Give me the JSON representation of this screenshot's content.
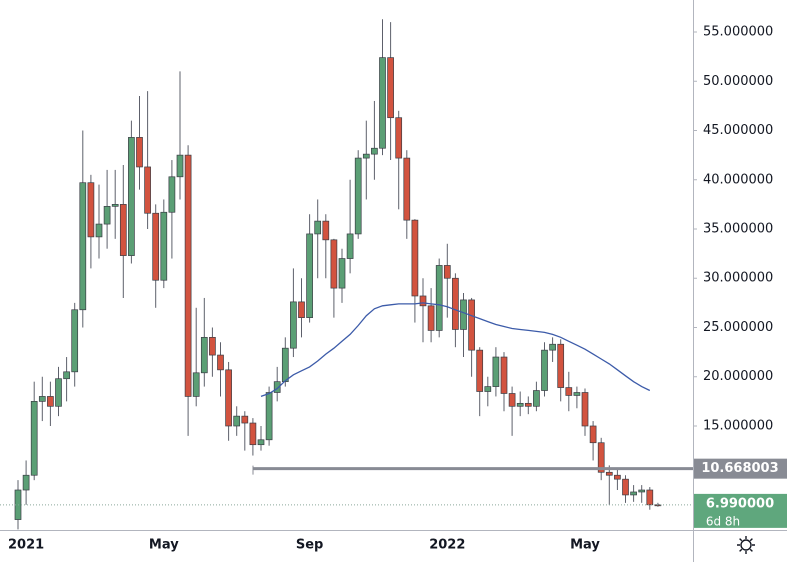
{
  "chart_data": {
    "type": "candlestick",
    "categories": [
      null,
      "2021",
      null,
      null,
      null,
      null,
      null,
      null,
      null,
      null,
      null,
      null,
      null,
      null,
      null,
      null,
      null,
      null,
      "May",
      null,
      null,
      null,
      null,
      null,
      null,
      null,
      null,
      null,
      null,
      null,
      null,
      null,
      null,
      null,
      null,
      null,
      "Sep",
      null,
      null,
      null,
      null,
      null,
      null,
      null,
      null,
      null,
      null,
      null,
      null,
      null,
      null,
      null,
      null,
      "2022",
      null,
      null,
      null,
      null,
      null,
      null,
      null,
      null,
      null,
      null,
      null,
      null,
      null,
      null,
      null,
      null,
      "May",
      null,
      null,
      null,
      null,
      null,
      null,
      null,
      null,
      null
    ],
    "open": [
      5.5,
      8.5,
      10,
      17.5,
      18,
      17,
      19.8,
      20.5,
      26.8,
      39.7,
      34.2,
      35.5,
      37.3,
      37.5,
      32.3,
      44.3,
      41.3,
      36.6,
      29.8,
      36.7,
      40.3,
      42.5,
      18,
      20.4,
      24,
      22.2,
      20.7,
      15,
      16,
      15.3,
      13.1,
      13.6,
      18.4,
      19.5,
      22.9,
      27.6,
      26,
      34.5,
      35.8,
      33.9,
      29,
      32,
      34.5,
      42.2,
      42.6,
      43.2,
      52.4,
      46.3,
      42.2,
      35.9,
      28.2,
      27.2,
      24.7,
      31.3,
      30,
      24.8,
      27.8,
      22.7,
      18.5,
      19,
      22,
      18.3,
      17,
      17.3,
      17,
      18.6,
      22.7,
      23.3,
      18.9,
      18.1,
      18.4,
      15,
      13.3,
      10.3,
      10,
      9.6,
      8,
      8.3,
      8.5,
      7
    ],
    "high": [
      9.5,
      11.5,
      19.5,
      20,
      19.5,
      21,
      22,
      27.5,
      45,
      40.5,
      39.5,
      41,
      41,
      41.5,
      46,
      48.5,
      49,
      37.5,
      38,
      42,
      51,
      43.5,
      27,
      28,
      25,
      23.5,
      21.5,
      17,
      16.5,
      15.8,
      15,
      19,
      21,
      24,
      31,
      30,
      36.5,
      38,
      36.5,
      34,
      33,
      40,
      43,
      46,
      48,
      56.3,
      56,
      47,
      43,
      36,
      30,
      29,
      32,
      33.5,
      30.5,
      28.5,
      28,
      23,
      20,
      23,
      22.5,
      19,
      18.5,
      18,
      19.5,
      23.5,
      24,
      23.8,
      20.5,
      19,
      18.8,
      15.5,
      13.8,
      11,
      10.7,
      10,
      9,
      9,
      8.8,
      7.2
    ],
    "low": [
      4.5,
      7,
      9.5,
      15.5,
      15,
      16,
      17.5,
      19,
      25,
      31,
      32,
      33,
      34,
      28,
      31.5,
      39,
      35,
      27,
      29,
      32,
      38,
      14,
      17,
      19,
      20,
      18,
      13.5,
      14,
      12.5,
      12,
      12.5,
      13,
      17.5,
      19,
      22,
      24,
      25.5,
      30,
      30,
      26,
      27.5,
      30.5,
      34,
      38,
      40,
      42.5,
      42,
      37,
      34,
      25.5,
      23.5,
      23.5,
      24,
      26,
      23,
      22,
      20,
      16,
      17,
      18,
      16.5,
      14,
      16,
      16.2,
      16.5,
      18,
      21.5,
      17.5,
      16.5,
      16.8,
      14,
      11.5,
      9.5,
      7,
      8.5,
      7.2,
      7.3,
      7.2,
      6.5,
      6.8
    ],
    "close": [
      8.5,
      10,
      17.5,
      18,
      17,
      19.8,
      20.5,
      26.8,
      39.7,
      34.2,
      35.5,
      37.3,
      37.5,
      32.3,
      44.3,
      41.3,
      36.6,
      29.8,
      36.7,
      40.3,
      42.5,
      18,
      20.4,
      24,
      22.2,
      20.7,
      15,
      16,
      15.3,
      13.1,
      13.6,
      18.4,
      19.5,
      22.9,
      27.6,
      26,
      34.5,
      35.8,
      33.9,
      29,
      32,
      34.5,
      42.2,
      42.6,
      43.2,
      52.4,
      46.3,
      42.2,
      35.9,
      28.2,
      27.2,
      24.7,
      31.3,
      30,
      24.8,
      27.8,
      22.7,
      18.5,
      19,
      22,
      18.3,
      17,
      17.3,
      17,
      18.6,
      22.7,
      23.3,
      18.9,
      18.1,
      18.4,
      15,
      13.3,
      10.3,
      10,
      9.6,
      8,
      8.3,
      8.5,
      7,
      6.99
    ],
    "up_color": "#5b9f75",
    "down_color": "#d2533f",
    "moving_average": {
      "color": "#3c5ba9",
      "values": [
        null,
        null,
        null,
        null,
        null,
        null,
        null,
        null,
        null,
        null,
        null,
        null,
        null,
        null,
        null,
        null,
        null,
        null,
        null,
        null,
        null,
        null,
        null,
        null,
        null,
        null,
        null,
        null,
        null,
        null,
        18,
        18.3,
        18.8,
        19.6,
        20.2,
        20.6,
        21,
        21.6,
        22.3,
        22.9,
        23.6,
        24.3,
        25.2,
        26.2,
        26.9,
        27.2,
        27.3,
        27.4,
        27.4,
        27.4,
        27.5,
        27.4,
        27.3,
        27.1,
        26.8,
        26.5,
        26.2,
        25.9,
        25.6,
        25.3,
        25.1,
        24.9,
        24.8,
        24.7,
        24.6,
        24.5,
        24.3,
        24,
        23.6,
        23.2,
        22.8,
        22.3,
        21.8,
        21.3,
        20.7,
        20.1,
        19.5,
        19,
        18.6,
        null
      ]
    },
    "level": {
      "value": 10.668003,
      "label": "10.668003",
      "color": "#888b94"
    },
    "last_price": {
      "value": 6.99,
      "label": "6.990000",
      "color": "#5fa77d"
    },
    "countdown": "6d 8h",
    "ylim": [
      4.44,
      58.25
    ],
    "yticks": [
      {
        "value": 15,
        "label": "15.000000"
      },
      {
        "value": 20,
        "label": "20.000000"
      },
      {
        "value": 25,
        "label": "25.000000"
      },
      {
        "value": 30,
        "label": "30.000000"
      },
      {
        "value": 35,
        "label": "35.000000"
      },
      {
        "value": 40,
        "label": "40.000000"
      },
      {
        "value": 45,
        "label": "45.000000"
      },
      {
        "value": 50,
        "label": "50.000000"
      },
      {
        "value": 55,
        "label": "55.000000"
      }
    ]
  }
}
